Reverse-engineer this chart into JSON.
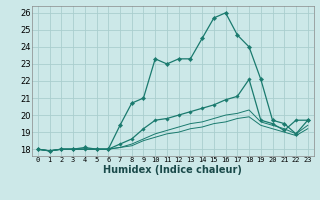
{
  "xlabel": "Humidex (Indice chaleur)",
  "bg_color": "#cce8e8",
  "grid_color": "#aacece",
  "line_color": "#1a7a6e",
  "xlim": [
    -0.5,
    23.5
  ],
  "ylim": [
    17.6,
    26.4
  ],
  "xticks": [
    0,
    1,
    2,
    3,
    4,
    5,
    6,
    7,
    8,
    9,
    10,
    11,
    12,
    13,
    14,
    15,
    16,
    17,
    18,
    19,
    20,
    21,
    22,
    23
  ],
  "yticks": [
    18,
    19,
    20,
    21,
    22,
    23,
    24,
    25,
    26
  ],
  "line1_x": [
    0,
    1,
    2,
    3,
    4,
    5,
    6,
    7,
    8,
    9,
    10,
    11,
    12,
    13,
    14,
    15,
    16,
    17,
    18,
    19,
    20,
    21,
    22,
    23
  ],
  "line1_y": [
    18.0,
    17.9,
    18.0,
    18.0,
    18.1,
    18.0,
    18.0,
    19.4,
    20.7,
    21.0,
    23.3,
    23.0,
    23.3,
    23.3,
    24.5,
    25.7,
    26.0,
    24.7,
    24.0,
    22.1,
    19.7,
    19.5,
    18.9,
    19.7
  ],
  "line2_x": [
    0,
    1,
    2,
    3,
    4,
    5,
    6,
    7,
    8,
    9,
    10,
    11,
    12,
    13,
    14,
    15,
    16,
    17,
    18,
    19,
    20,
    21,
    22,
    23
  ],
  "line2_y": [
    18.0,
    17.9,
    18.0,
    18.0,
    18.0,
    18.0,
    18.0,
    18.3,
    18.6,
    19.2,
    19.7,
    19.8,
    20.0,
    20.2,
    20.4,
    20.6,
    20.9,
    21.1,
    22.1,
    19.7,
    19.5,
    19.1,
    19.7,
    19.7
  ],
  "line3_x": [
    0,
    1,
    2,
    3,
    4,
    5,
    6,
    7,
    8,
    9,
    10,
    11,
    12,
    13,
    14,
    15,
    16,
    17,
    18,
    19,
    20,
    21,
    22,
    23
  ],
  "line3_y": [
    18.0,
    17.9,
    18.0,
    18.0,
    18.0,
    18.0,
    18.0,
    18.1,
    18.3,
    18.6,
    18.9,
    19.1,
    19.3,
    19.5,
    19.6,
    19.8,
    20.0,
    20.1,
    20.3,
    19.6,
    19.4,
    19.2,
    18.9,
    19.4
  ],
  "line4_x": [
    0,
    1,
    2,
    3,
    4,
    5,
    6,
    7,
    8,
    9,
    10,
    11,
    12,
    13,
    14,
    15,
    16,
    17,
    18,
    19,
    20,
    21,
    22,
    23
  ],
  "line4_y": [
    18.0,
    17.9,
    18.0,
    18.0,
    18.0,
    18.0,
    18.0,
    18.1,
    18.2,
    18.5,
    18.7,
    18.9,
    19.0,
    19.2,
    19.3,
    19.5,
    19.6,
    19.8,
    19.9,
    19.4,
    19.2,
    19.0,
    18.8,
    19.2
  ]
}
